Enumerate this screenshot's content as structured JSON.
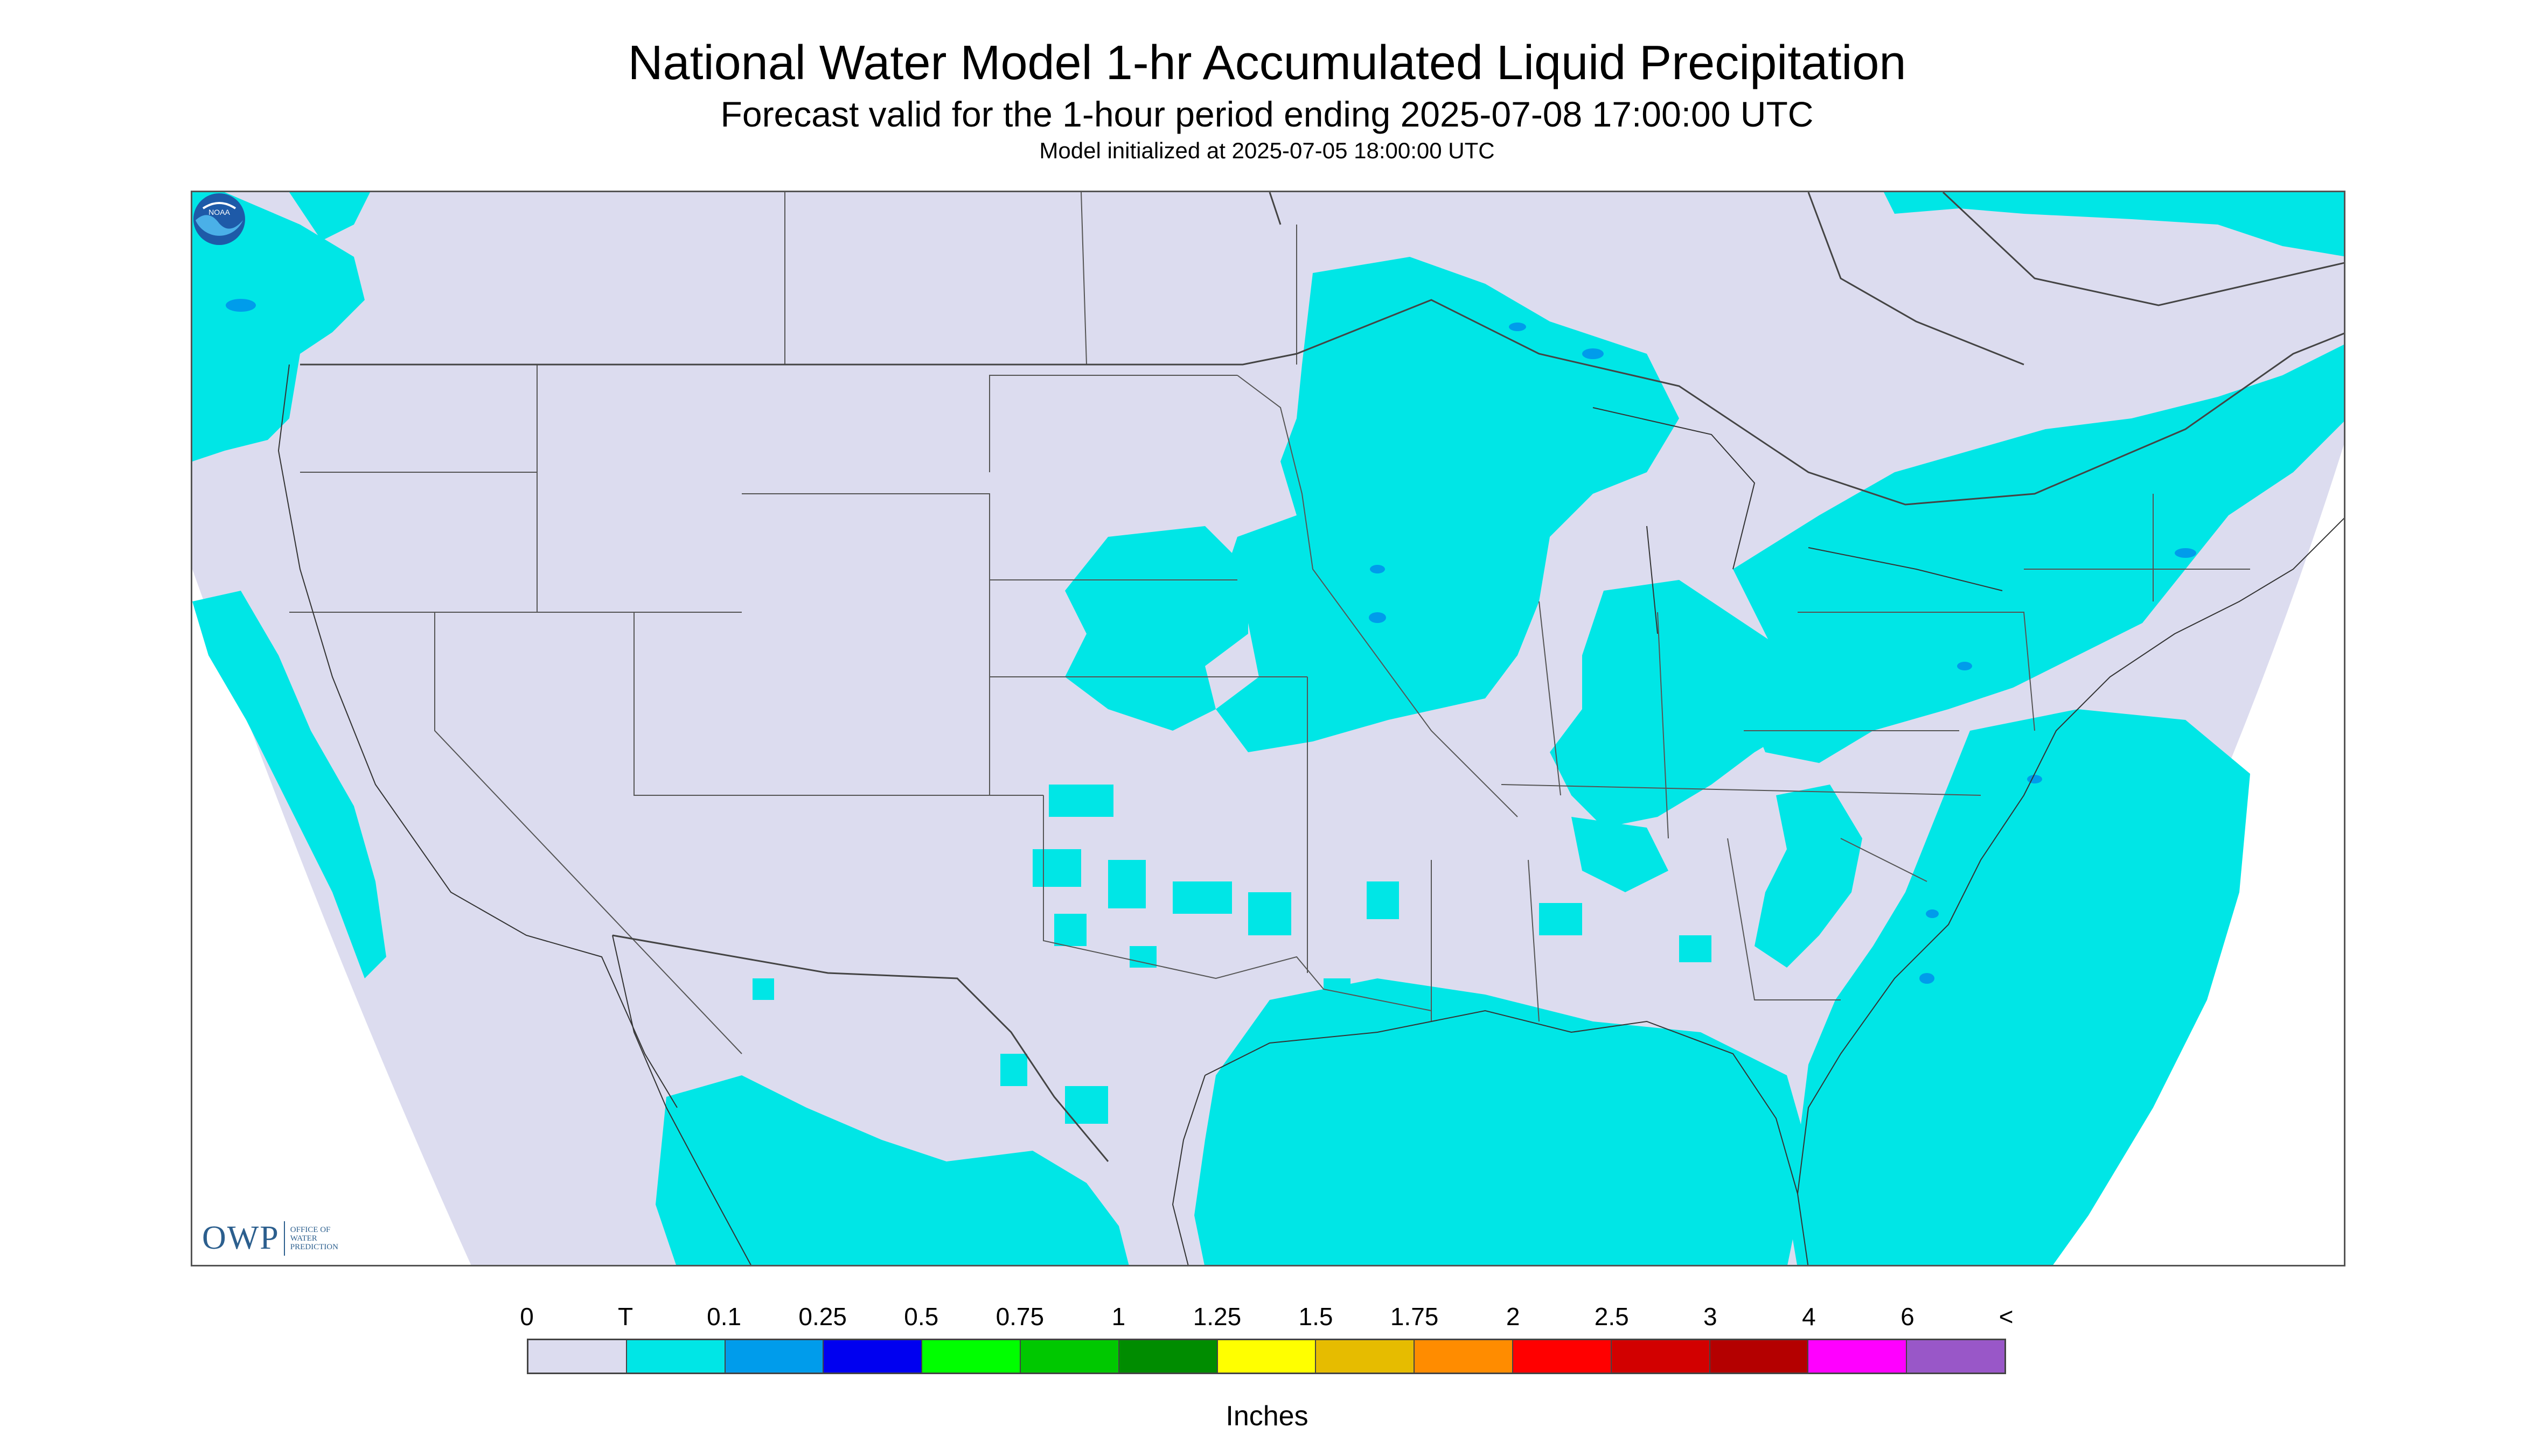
{
  "title": "National Water Model 1-hr Accumulated Liquid Precipitation",
  "subtitle": "Forecast valid for the 1-hour period ending 2025-07-08 17:00:00 UTC",
  "init_line": "Model initialized at 2025-07-05 18:00:00 UTC",
  "logos": {
    "owp_word": "OWP",
    "owp_sub": [
      "OFFICE OF",
      "WATER",
      "PREDICTION"
    ],
    "noaa_text": "NOAA"
  },
  "legend": {
    "labels": [
      "0",
      "T",
      "0.1",
      "0.25",
      "0.5",
      "0.75",
      "1",
      "1.25",
      "1.5",
      "1.75",
      "2",
      "2.5",
      "3",
      "4",
      "6",
      "<"
    ],
    "colors": [
      "#dcdcef",
      "#00e6e6",
      "#009ceb",
      "#0000f0",
      "#00ff00",
      "#00c800",
      "#008c00",
      "#ffff00",
      "#e6bc00",
      "#ff8c00",
      "#ff0000",
      "#d20000",
      "#b40000",
      "#ff00ff",
      "#9957c8"
    ],
    "units": "Inches"
  },
  "map": {
    "background_color": "#dcdcef",
    "precip_color": "#00e6e6",
    "heavy_color": "#009ceb",
    "dominant_category": "T"
  }
}
